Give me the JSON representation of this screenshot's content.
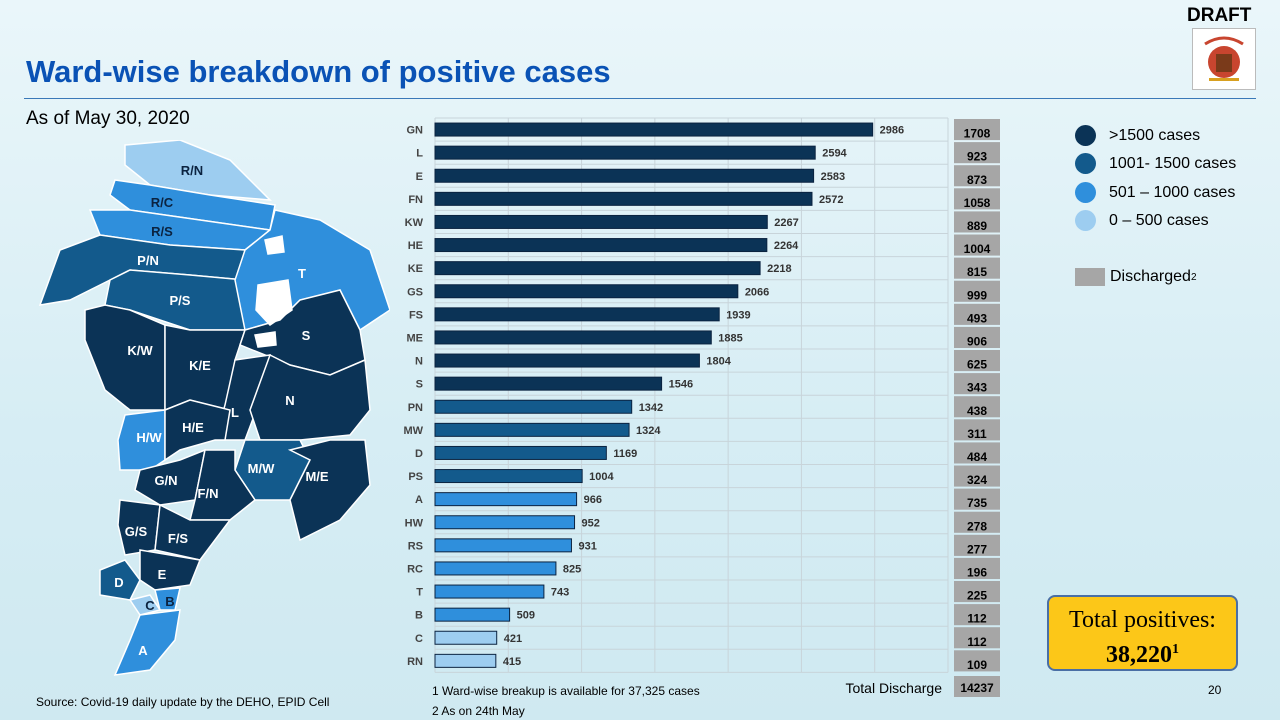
{
  "header": {
    "title": "Ward-wise breakdown of positive cases",
    "draft": "DRAFT",
    "as_of": "As of May 30, 2020"
  },
  "legend": [
    {
      "label": ">1500 cases",
      "color": "#0b3356"
    },
    {
      "label": "1001- 1500 cases",
      "color": "#135a8c"
    },
    {
      "label": "501 – 1000 cases",
      "color": "#2f8fdc"
    },
    {
      "label": "0 – 500 cases",
      "color": "#9dcdf0"
    }
  ],
  "discharged_legend": {
    "label": "Discharged",
    "sup": "2",
    "color": "#a6a6a6"
  },
  "total": {
    "label": "Total positives:",
    "value": "38,220",
    "sup": "1"
  },
  "footnotes": [
    "1 Ward-wise breakup is available for 37,325 cases",
    "2 As on 24th May"
  ],
  "source": "Source: Covid-19 daily update by the DEHO, EPID Cell",
  "page_number": "20",
  "map": {
    "wards": [
      "R/N",
      "R/C",
      "R/S",
      "P/N",
      "P/S",
      "T",
      "K/W",
      "K/E",
      "S",
      "L",
      "N",
      "H/W",
      "H/E",
      "G/N",
      "F/N",
      "M/W",
      "M/E",
      "G/S",
      "F/S",
      "D",
      "E",
      "C",
      "B",
      "A"
    ]
  },
  "chart_data": {
    "type": "bar",
    "orientation": "horizontal",
    "categories": [
      "GN",
      "L",
      "E",
      "FN",
      "KW",
      "HE",
      "KE",
      "GS",
      "FS",
      "ME",
      "N",
      "S",
      "PN",
      "MW",
      "D",
      "PS",
      "A",
      "HW",
      "RS",
      "RC",
      "T",
      "B",
      "C",
      "RN"
    ],
    "series": [
      {
        "values": [
          2986,
          2594,
          2583,
          2572,
          2267,
          2264,
          2218,
          2066,
          1939,
          1885,
          1804,
          1546,
          1342,
          1324,
          1169,
          1004,
          966,
          952,
          931,
          825,
          743,
          509,
          421,
          415
        ]
      }
    ],
    "discharged": [
      1708,
      923,
      873,
      1058,
      889,
      1004,
      815,
      999,
      493,
      906,
      625,
      343,
      438,
      311,
      484,
      324,
      735,
      278,
      277,
      196,
      225,
      112,
      112,
      109
    ],
    "total_discharge_label": "Total Discharge",
    "total_discharge": "14237",
    "xlim": [
      0,
      3500
    ],
    "grid": true,
    "color_thresholds": [
      {
        "min": 1501,
        "color": "#0b3356"
      },
      {
        "min": 1001,
        "color": "#135a8c"
      },
      {
        "min": 501,
        "color": "#2f8fdc"
      },
      {
        "min": 0,
        "color": "#9dcdf0"
      }
    ]
  }
}
